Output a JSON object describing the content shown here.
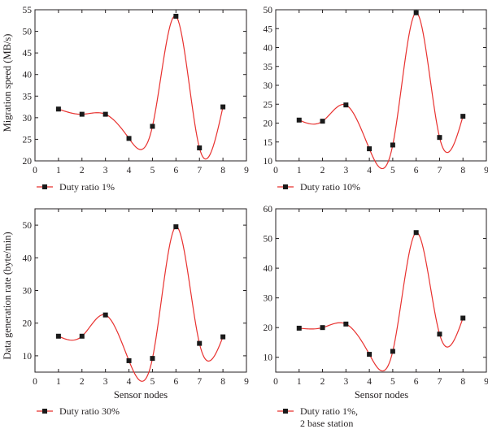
{
  "figure": {
    "x_title": "Sensor nodes",
    "y_title_top": "Migration speed (MB/s)",
    "y_title_bottom": "Data generation rate (byte/min)",
    "fit_color": "#e8312f",
    "marker_color": "#1a1a1a",
    "axis_color": "#231f20"
  },
  "chart_data": [
    {
      "type": "scatter",
      "panel": "top-left",
      "xlim": [
        0,
        9
      ],
      "ylim": [
        20,
        55
      ],
      "xticks": [
        "0",
        "1",
        "2",
        "3",
        "4",
        "5",
        "6",
        "7",
        "8",
        "9"
      ],
      "yticks": [
        "20",
        "25",
        "30",
        "35",
        "40",
        "45",
        "50",
        "55"
      ],
      "xlabel": "",
      "ylabel": "Migration speed (MB/s)",
      "x": [
        1,
        2,
        3,
        4,
        5,
        6,
        7,
        8
      ],
      "values": [
        32.0,
        30.8,
        30.8,
        25.2,
        28.0,
        53.5,
        23.0,
        32.5
      ],
      "legend": "Duty ratio 1%",
      "fit_curve": "smooth spline through points (red line)"
    },
    {
      "type": "scatter",
      "panel": "top-right",
      "xlim": [
        0,
        9
      ],
      "ylim": [
        10,
        50
      ],
      "xticks": [
        "0",
        "1",
        "2",
        "3",
        "4",
        "5",
        "6",
        "7",
        "8",
        "9"
      ],
      "yticks": [
        "10",
        "15",
        "20",
        "25",
        "30",
        "35",
        "40",
        "45",
        "50"
      ],
      "xlabel": "",
      "ylabel": "",
      "x": [
        1,
        2,
        3,
        4,
        5,
        6,
        7,
        8
      ],
      "values": [
        20.8,
        20.5,
        24.8,
        13.2,
        14.2,
        49.2,
        16.2,
        21.8
      ],
      "legend": "Duty ratio 10%",
      "fit_curve": "smooth spline through points (red line)"
    },
    {
      "type": "scatter",
      "panel": "bottom-left",
      "xlim": [
        0,
        9
      ],
      "ylim": [
        5,
        55
      ],
      "xticks": [
        "0",
        "1",
        "2",
        "3",
        "4",
        "5",
        "6",
        "7",
        "8",
        "9"
      ],
      "yticks": [
        "10",
        "20",
        "30",
        "40",
        "50"
      ],
      "xlabel": "Sensor nodes",
      "ylabel": "Data generation rate (byte/min)",
      "x": [
        1,
        2,
        3,
        4,
        5,
        6,
        7,
        8
      ],
      "values": [
        16.0,
        16.0,
        22.5,
        8.5,
        9.2,
        49.5,
        13.8,
        15.8
      ],
      "legend": "Duty ratio 30%",
      "fit_curve": "smooth spline through points (red line)"
    },
    {
      "type": "scatter",
      "panel": "bottom-right",
      "xlim": [
        0,
        9
      ],
      "ylim": [
        5,
        60
      ],
      "xticks": [
        "0",
        "1",
        "2",
        "3",
        "4",
        "5",
        "6",
        "7",
        "8",
        "9"
      ],
      "yticks": [
        "10",
        "20",
        "30",
        "40",
        "50",
        "60"
      ],
      "xlabel": "Sensor nodes",
      "ylabel": "",
      "x": [
        1,
        2,
        3,
        4,
        5,
        6,
        7,
        8
      ],
      "values": [
        19.8,
        20.0,
        21.2,
        11.0,
        12.0,
        52.0,
        17.8,
        23.2
      ],
      "legend": "Duty ratio 1%,",
      "legend_line2": "2 base station",
      "fit_curve": "smooth spline through points (red line)"
    }
  ]
}
